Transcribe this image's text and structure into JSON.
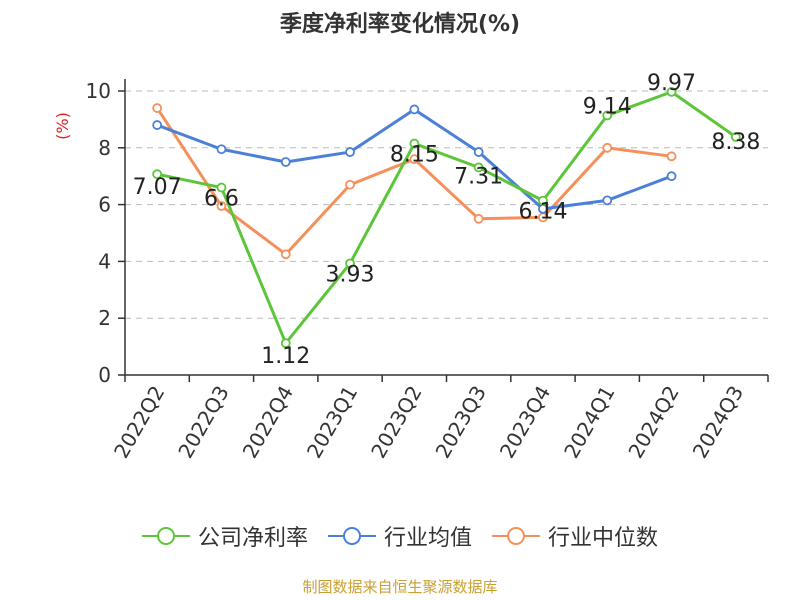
{
  "chart_data": {
    "type": "line",
    "title": "季度净利率变化情况(%)",
    "ylabel": "(%)",
    "ylim": [
      0,
      10
    ],
    "yticks": [
      0,
      2,
      4,
      6,
      8,
      10
    ],
    "grid": true,
    "legend_position": "bottom",
    "categories": [
      "2022Q2",
      "2022Q3",
      "2022Q4",
      "2023Q1",
      "2023Q2",
      "2023Q3",
      "2023Q4",
      "2024Q1",
      "2024Q2",
      "2024Q3"
    ],
    "series": [
      {
        "name": "公司净利率",
        "color": "#5dc53a",
        "values": [
          7.07,
          6.6,
          1.12,
          3.93,
          8.15,
          7.31,
          6.14,
          9.14,
          9.97,
          8.38
        ],
        "labels": [
          "7.07",
          "6.6",
          "1.12",
          "3.93",
          "8.15",
          "7.31",
          "6.14",
          "9.14",
          "9.97",
          "8.38"
        ]
      },
      {
        "name": "行业均值",
        "color": "#4c7fd8",
        "values": [
          8.8,
          7.95,
          7.5,
          7.85,
          9.35,
          7.85,
          5.85,
          6.15,
          7.0,
          null
        ]
      },
      {
        "name": "行业中位数",
        "color": "#f5905a",
        "values": [
          9.4,
          5.95,
          4.25,
          6.7,
          7.6,
          5.5,
          5.55,
          8.0,
          7.7,
          null
        ]
      }
    ]
  },
  "source": "制图数据来自恒生聚源数据库"
}
